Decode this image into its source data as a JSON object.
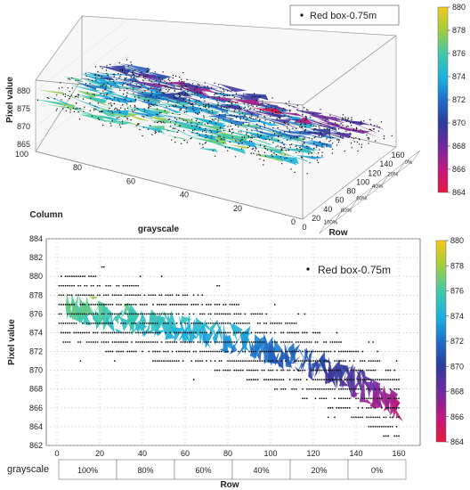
{
  "chart_data": [
    {
      "type": "scatter",
      "view": "3d",
      "legend": {
        "label": "Red box-0.75m",
        "placement": "top-right"
      },
      "zlabel": "Pixel value",
      "xlabel": "Row",
      "ylabel": "Column",
      "row_ticks": [
        0,
        20,
        40,
        60,
        80,
        100,
        120,
        140,
        160
      ],
      "column_ticks": [
        0,
        20,
        40,
        60,
        80,
        100
      ],
      "z_ticks": [
        865,
        870,
        875,
        880
      ],
      "xlim": [
        0,
        160
      ],
      "ylim": [
        0,
        100
      ],
      "zlim": [
        863,
        882
      ],
      "grayscale_label": "grayscale",
      "grayscale_bands": [
        "100%",
        "80%",
        "60%",
        "40%",
        "20%",
        "0%"
      ],
      "colorbar": {
        "min": 864,
        "max": 880,
        "ticks": [
          864,
          866,
          868,
          870,
          872,
          874,
          876,
          878,
          880
        ]
      },
      "trend": {
        "x": [
          0,
          20,
          40,
          60,
          80,
          100,
          120,
          140,
          160
        ],
        "y": [
          877,
          876,
          875,
          874.5,
          873.5,
          872,
          870.5,
          868.5,
          866
        ]
      }
    },
    {
      "type": "scatter",
      "view": "2d",
      "legend": {
        "label": "Red box-0.75m",
        "placement": "top-right"
      },
      "xlabel": "Row",
      "ylabel": "Pixel value",
      "x_ticks": [
        0,
        20,
        40,
        60,
        80,
        100,
        120,
        140,
        160
      ],
      "y_ticks": [
        862,
        864,
        866,
        868,
        870,
        872,
        874,
        876,
        878,
        880,
        882,
        884
      ],
      "xlim": [
        -5,
        170
      ],
      "ylim": [
        862,
        884
      ],
      "grid": true,
      "grayscale_label": "grayscale",
      "grayscale_bands": [
        "100%",
        "80%",
        "60%",
        "40%",
        "20%",
        "0%"
      ],
      "colorbar": {
        "min": 864,
        "max": 880,
        "ticks": [
          864,
          866,
          868,
          870,
          872,
          874,
          876,
          878,
          880
        ]
      },
      "trend": {
        "x": [
          0,
          20,
          40,
          60,
          80,
          100,
          120,
          140,
          160
        ],
        "y": [
          877,
          876,
          875,
          874.5,
          873.5,
          872,
          870.5,
          868.5,
          866
        ]
      },
      "spread": 3
    }
  ]
}
